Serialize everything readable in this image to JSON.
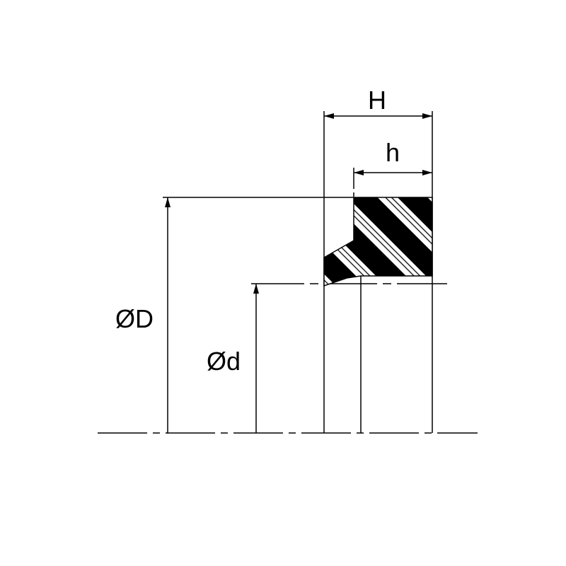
{
  "labels": {
    "H": "H",
    "h": "h",
    "D": "ØD",
    "d": "Ød"
  },
  "colors": {
    "line": "#000000",
    "background": "#ffffff"
  }
}
